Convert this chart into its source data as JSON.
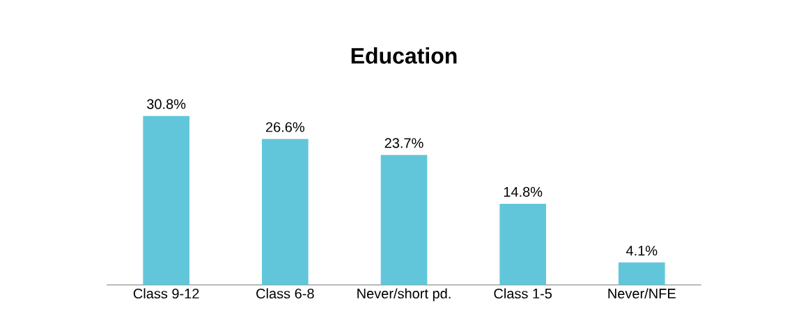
{
  "chart_data": {
    "type": "bar",
    "title": "Education",
    "categories": [
      "Class 9-12",
      "Class 6-8",
      "Never/short pd.",
      "Class 1-5",
      "Never/NFE"
    ],
    "values": [
      30.8,
      26.6,
      23.7,
      14.8,
      4.1
    ],
    "value_labels": [
      "30.8%",
      "26.6%",
      "23.7%",
      "14.8%",
      "4.1%"
    ],
    "color": "#62c6db"
  }
}
